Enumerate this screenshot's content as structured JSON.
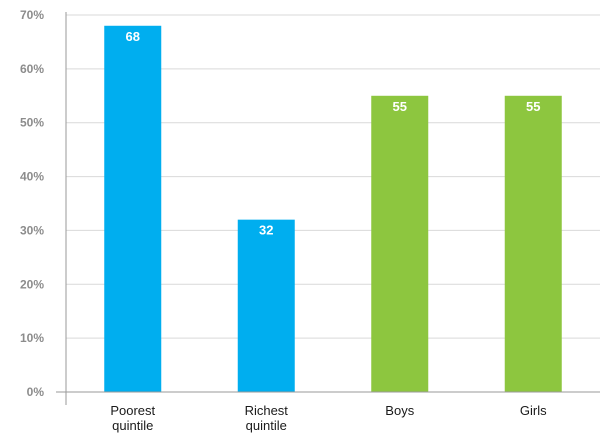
{
  "chart_data": {
    "type": "bar",
    "title": "",
    "xlabel": "",
    "ylabel": "",
    "ylim": [
      0,
      70
    ],
    "yticks": [
      "0%",
      "10%",
      "20%",
      "30%",
      "40%",
      "50%",
      "60%",
      "70%"
    ],
    "categories": [
      "Poorest quintile",
      "Richest quintile",
      "Boys",
      "Girls"
    ],
    "values": [
      68,
      32,
      55,
      55
    ],
    "data_labels": [
      "68",
      "32",
      "55",
      "55"
    ],
    "bar_colors": [
      "#00aeef",
      "#00aeef",
      "#8dc63f",
      "#8dc63f"
    ],
    "grid": true,
    "legend": "none"
  },
  "colors": {
    "gridline": "#d9d9d9",
    "axis": "#9a9a9a",
    "tick_label": "#8c8c8c",
    "category_label": "#1a1a1a",
    "data_label": "#ffffff"
  }
}
